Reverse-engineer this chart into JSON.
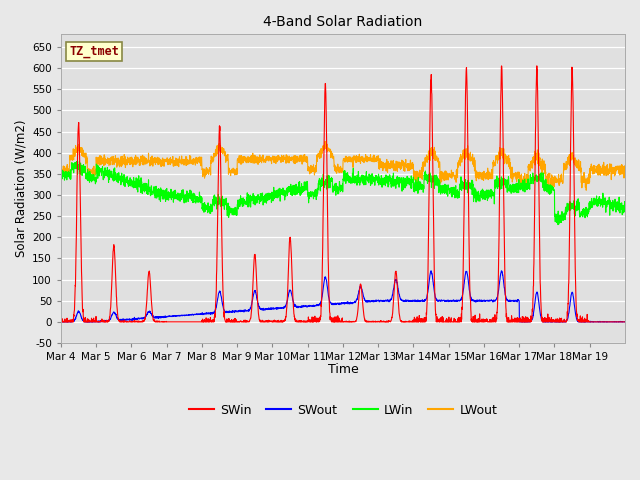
{
  "title": "4-Band Solar Radiation",
  "xlabel": "Time",
  "ylabel": "Solar Radiation (W/m2)",
  "ylim": [
    -50,
    680
  ],
  "yticks": [
    -50,
    0,
    50,
    100,
    150,
    200,
    250,
    300,
    350,
    400,
    450,
    500,
    550,
    600,
    650
  ],
  "legend_labels": [
    "SWin",
    "SWout",
    "LWin",
    "LWout"
  ],
  "legend_colors": [
    "red",
    "blue",
    "lime",
    "orange"
  ],
  "bg_color": "#e8e8e8",
  "plot_bg_color": "#e0e0e0",
  "annotation_text": "TZ_tmet",
  "annotation_bg": "#ffffcc",
  "annotation_border": "#888844",
  "days": [
    "Mar 4",
    "Mar 5",
    "Mar 6",
    "Mar 7",
    "Mar 8",
    "Mar 9",
    "Mar 10",
    "Mar 11",
    "Mar 12",
    "Mar 13",
    "Mar 14",
    "Mar 15",
    "Mar 16",
    "Mar 17",
    "Mar 18",
    "Mar 19"
  ],
  "n_points": 2880,
  "dt_days": 16,
  "peak_heights_SWin": [
    470,
    180,
    120,
    0,
    460,
    160,
    200,
    560,
    90,
    120,
    580,
    600,
    600,
    600,
    600,
    0
  ],
  "peak_heights_SWout": [
    25,
    20,
    15,
    0,
    50,
    45,
    40,
    65,
    35,
    50,
    70,
    70,
    70,
    70,
    70,
    0
  ]
}
